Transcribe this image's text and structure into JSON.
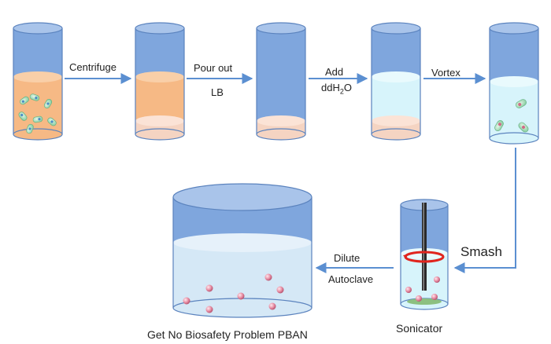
{
  "steps": {
    "centrifuge": "Centrifuge",
    "pour_out_line1": "Pour out",
    "pour_out_line2": "LB",
    "add_line1": "Add",
    "add_line2_prefix": "ddH",
    "add_line2_sub": "2",
    "add_line2_suffix": "O",
    "vortex": "Vortex",
    "smash": "Smash",
    "dilute": "Dilute",
    "autoclave": "Autoclave"
  },
  "captions": {
    "sonicator": "Sonicator",
    "final_product": "Get No Biosafety Problem PBAN"
  },
  "colors": {
    "tube_body": "#7fa6dd",
    "tube_outline": "#5b83be",
    "tube_top": "#a9c4ea",
    "lb_medium": "#f6b985",
    "pellet": "#f5d4c2",
    "water": "#d7f4fb",
    "water_final": "#d5e8f6",
    "arrow": "#5b8fd1",
    "cell": "#9bd8b2",
    "sonicator_ring": "#e0251e",
    "sediment": "#8cc080"
  }
}
